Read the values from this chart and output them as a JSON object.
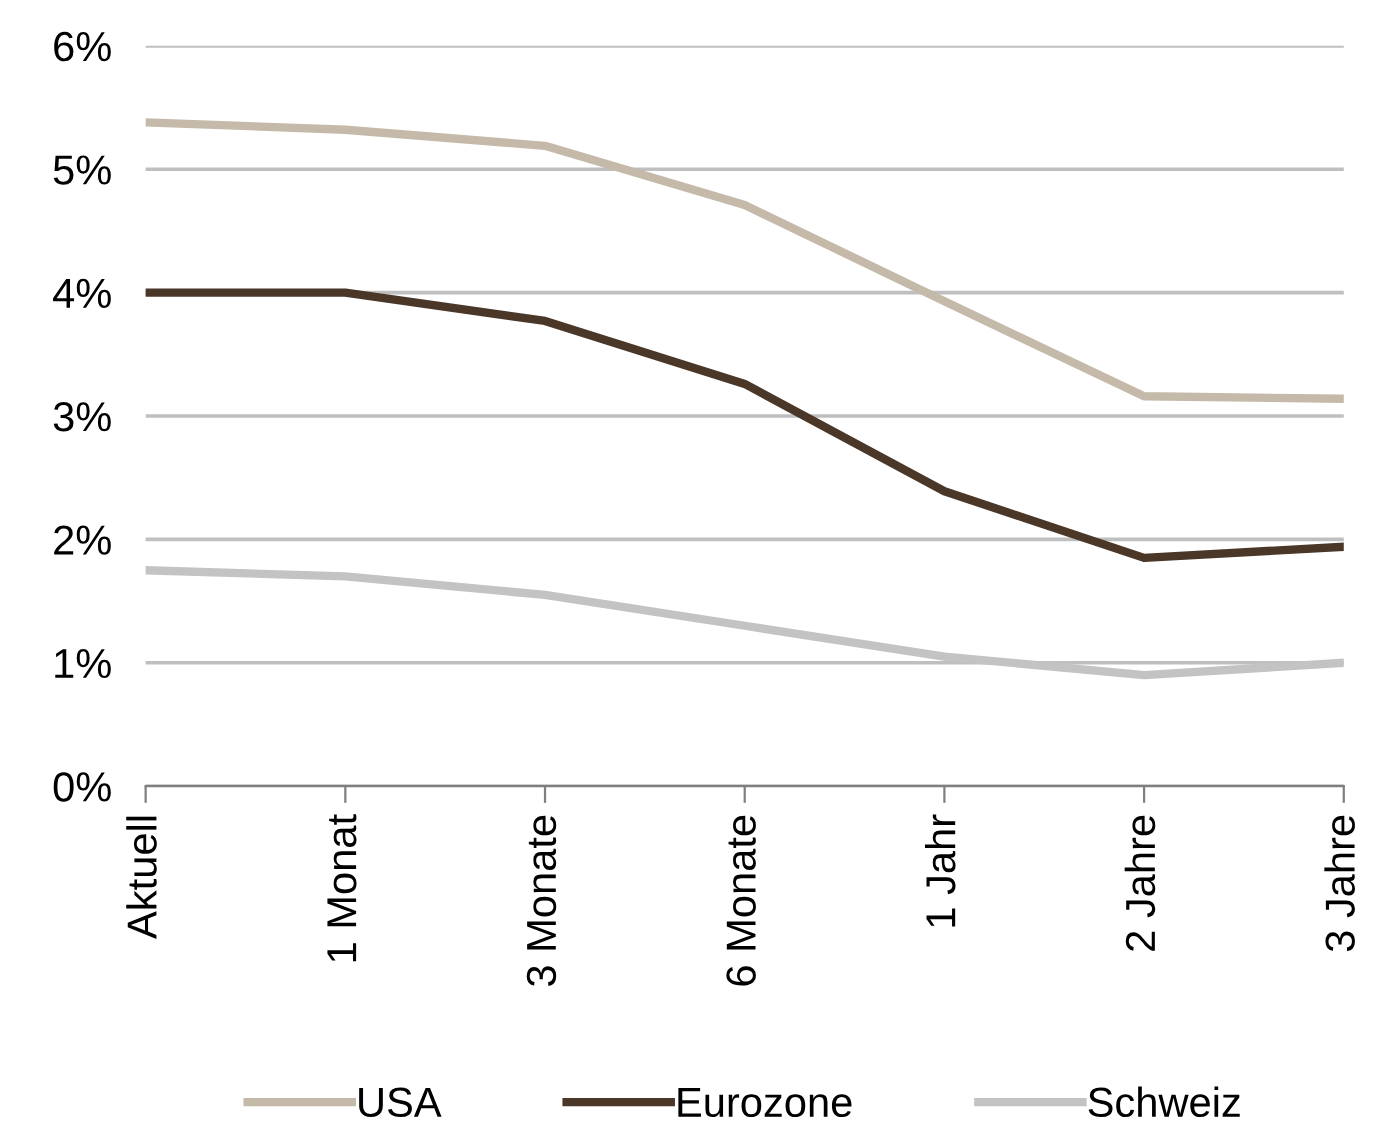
{
  "chart_data": {
    "type": "line",
    "categories": [
      "Aktuell",
      "1 Monat",
      "3 Monate",
      "6 Monate",
      "1 Jahr",
      "2 Jahre",
      "3 Jahre"
    ],
    "series": [
      {
        "name": "USA",
        "color": "#c5b9a9",
        "values": [
          5.38,
          5.32,
          5.19,
          4.71,
          3.93,
          3.16,
          3.14
        ]
      },
      {
        "name": "Eurozone",
        "color": "#4a3728",
        "values": [
          4.0,
          4.0,
          3.77,
          3.26,
          2.39,
          1.85,
          1.94
        ]
      },
      {
        "name": "Schweiz",
        "color": "#c3c3c3",
        "values": [
          1.75,
          1.7,
          1.55,
          1.3,
          1.05,
          0.9,
          1.0
        ]
      }
    ],
    "ylim": [
      0,
      6
    ],
    "yticks": [
      {
        "value": 0,
        "label": "0%"
      },
      {
        "value": 1,
        "label": "1%"
      },
      {
        "value": 2,
        "label": "2%"
      },
      {
        "value": 3,
        "label": "3%"
      },
      {
        "value": 4,
        "label": "4%"
      },
      {
        "value": 5,
        "label": "5%"
      },
      {
        "value": 6,
        "label": "6%"
      }
    ],
    "grid": "y",
    "legend": "bottom",
    "marker": "none",
    "line_style": "solid"
  }
}
